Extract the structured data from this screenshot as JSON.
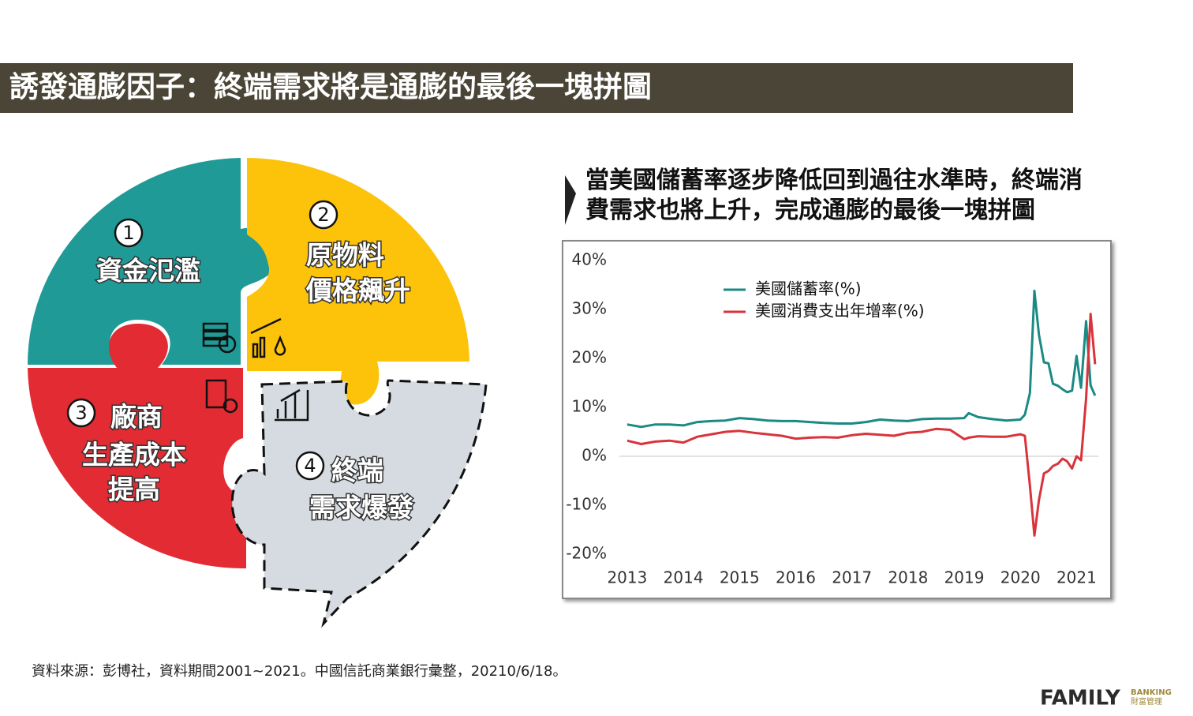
{
  "header": {
    "title": "誘發通膨因子：終端需求將是通膨的最後一塊拼圖"
  },
  "puzzle": {
    "pieces": [
      {
        "number": "1",
        "lines": [
          "資金氾濫"
        ]
      },
      {
        "number": "2",
        "lines": [
          "原物料",
          "價格飆升"
        ]
      },
      {
        "number": "3",
        "lines": [
          "廠商",
          "生產成本",
          "提高"
        ]
      },
      {
        "number": "4",
        "lines": [
          "終端",
          "需求爆發"
        ]
      }
    ]
  },
  "chart_data": {
    "type": "line",
    "title": "當美國儲蓄率逐步降低回到過往水準時，終端消費需求也將上升，完成通膨的最後一塊拼圖",
    "x": [
      2013.0,
      2013.25,
      2013.5,
      2013.75,
      2014.0,
      2014.25,
      2014.5,
      2014.75,
      2015.0,
      2015.25,
      2015.5,
      2015.75,
      2016.0,
      2016.25,
      2016.5,
      2016.75,
      2017.0,
      2017.25,
      2017.5,
      2017.75,
      2018.0,
      2018.25,
      2018.5,
      2018.75,
      2019.0,
      2019.08,
      2019.25,
      2019.5,
      2019.75,
      2020.0,
      2020.08,
      2020.17,
      2020.25,
      2020.33,
      2020.42,
      2020.5,
      2020.58,
      2020.67,
      2020.75,
      2020.83,
      2020.92,
      2021.0,
      2021.08,
      2021.17,
      2021.25,
      2021.33
    ],
    "series": [
      {
        "name": "美國儲蓄率(%)",
        "color": "#1a8a84",
        "values": [
          6.5,
          6.0,
          6.5,
          6.5,
          6.3,
          7.0,
          7.2,
          7.3,
          7.8,
          7.6,
          7.3,
          7.2,
          7.2,
          7.0,
          6.8,
          6.7,
          6.7,
          7.0,
          7.5,
          7.3,
          7.2,
          7.6,
          7.7,
          7.7,
          7.8,
          8.8,
          8.0,
          7.6,
          7.3,
          7.5,
          8.5,
          12.9,
          33.8,
          24.9,
          19.2,
          19.0,
          14.8,
          14.4,
          13.7,
          13.1,
          13.4,
          20.5,
          14.0,
          27.6,
          14.5,
          12.4
        ]
      },
      {
        "name": "美國消費支出年增率(%)",
        "color": "#d9333b",
        "values": [
          3.2,
          2.5,
          3.0,
          3.2,
          2.8,
          4.0,
          4.5,
          5.0,
          5.2,
          4.8,
          4.5,
          4.2,
          3.6,
          3.8,
          3.9,
          3.8,
          4.3,
          4.6,
          4.4,
          4.2,
          4.8,
          5.0,
          5.6,
          5.4,
          3.5,
          3.8,
          4.1,
          4.0,
          4.0,
          4.5,
          4.2,
          -6.0,
          -16.2,
          -9.0,
          -3.5,
          -3.0,
          -2.0,
          -1.5,
          -0.5,
          -1.0,
          -2.5,
          0.0,
          -0.8,
          11.8,
          29.1,
          18.8
        ]
      }
    ],
    "xlim": [
      2012.65,
      2021.5
    ],
    "xticks": [
      2013,
      2014,
      2015,
      2016,
      2017,
      2018,
      2019,
      2020,
      2021
    ],
    "ylim": [
      -20,
      40
    ],
    "yticks": [
      {
        "value": 40,
        "label": "40%"
      },
      {
        "value": 30,
        "label": "30%"
      },
      {
        "value": 20,
        "label": "20%"
      },
      {
        "value": 10,
        "label": "10%"
      },
      {
        "value": 0,
        "label": "0%"
      },
      {
        "value": -10,
        "label": "-10%"
      },
      {
        "value": -20,
        "label": "-20%"
      }
    ],
    "grid": false
  },
  "source": "資料來源：彭博社，資料期間2001~2021。中國信託商業銀行彙整，20210/6/18。",
  "logo": {
    "brand": "FAMILY",
    "sub": "BANKING",
    "sub_cn": "財富管理"
  }
}
